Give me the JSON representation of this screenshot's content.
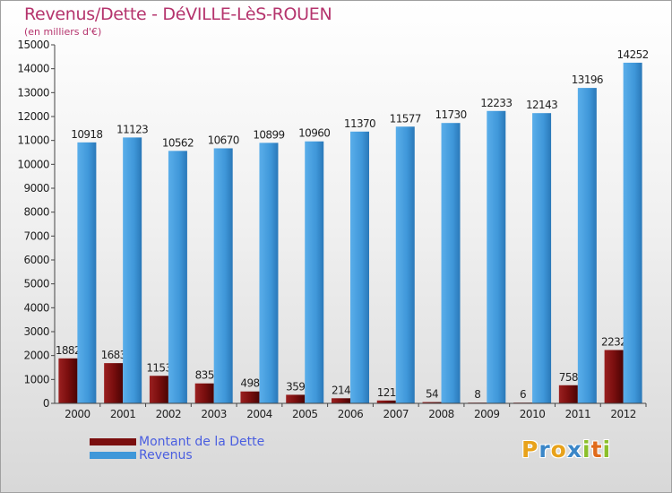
{
  "title": "Revenus/Dette - DéVILLE-LèS-ROUEN",
  "subtitle": "(en milliers d'€)",
  "colors": {
    "dette": "#7a0e0e",
    "revenus": "#3f97d9",
    "title": "#b5346d",
    "legend_text": "#4a5ee0"
  },
  "legend": [
    {
      "label": "Montant de la Dette",
      "color": "#7a0e0e"
    },
    {
      "label": "Revenus",
      "color": "#3f97d9"
    }
  ],
  "logo": {
    "letters": [
      "P",
      "r",
      "o",
      "x",
      "i",
      "t",
      "i"
    ],
    "colors": [
      "#e8a21b",
      "#3a86c8",
      "#e8a21b",
      "#3a86c8",
      "#8bbf2a",
      "#e06a1b",
      "#8bbf2a"
    ]
  },
  "chart_data": {
    "type": "bar",
    "categories": [
      "2000",
      "2001",
      "2002",
      "2003",
      "2004",
      "2005",
      "2006",
      "2007",
      "2008",
      "2009",
      "2010",
      "2011",
      "2012"
    ],
    "series": [
      {
        "name": "Montant de la Dette",
        "values": [
          1882,
          1683,
          1153,
          835,
          498,
          359,
          214,
          121,
          54,
          8,
          6,
          758,
          2232
        ]
      },
      {
        "name": "Revenus",
        "values": [
          10918,
          11123,
          10562,
          10670,
          10899,
          10960,
          11370,
          11577,
          11730,
          12233,
          12143,
          13196,
          14252
        ]
      }
    ],
    "ylim": [
      0,
      15000
    ],
    "yticks": [
      0,
      1000,
      2000,
      3000,
      4000,
      5000,
      6000,
      7000,
      8000,
      9000,
      10000,
      11000,
      12000,
      13000,
      14000,
      15000
    ],
    "grid": false
  }
}
